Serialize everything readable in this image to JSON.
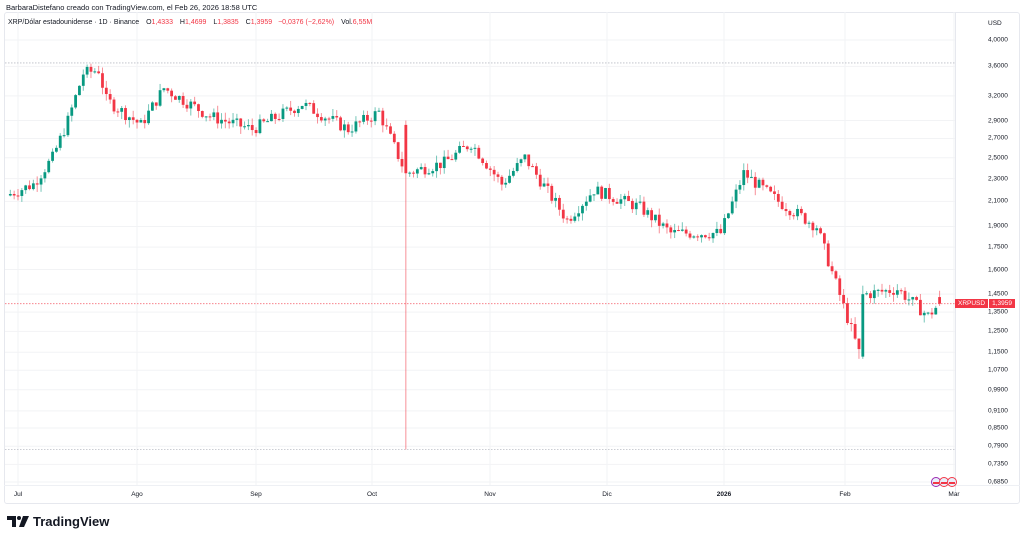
{
  "header": {
    "credit": "BarbaraDistefano creado con TradingView.com, el Feb 26, 2026 18:58 UTC"
  },
  "legend": {
    "symbol": "XRP/Dólar estadounidense · 1D · Binance",
    "open_label": "O",
    "open": "1,4333",
    "high_label": "H",
    "high": "1,4699",
    "low_label": "L",
    "low": "1,3835",
    "close_label": "C",
    "close": "1,3959",
    "change": "−0,0376 (−2,62%)",
    "vol_label": "Vol.",
    "vol": "6,55M"
  },
  "price_axis": {
    "unit": "USD",
    "ticks": [
      "4,0000",
      "3,6000",
      "3,2000",
      "2,9000",
      "2,7000",
      "2,5000",
      "2,3000",
      "2,1000",
      "1,9000",
      "1,7500",
      "1,6000",
      "1,4500",
      "1,3500",
      "1,2500",
      "1,1500",
      "1,0700",
      "0,9900",
      "0,9100",
      "0,8500",
      "0,7900",
      "0,7350",
      "0,6850"
    ]
  },
  "time_axis": {
    "ticks": [
      "Jul",
      "Ago",
      "Sep",
      "Oct",
      "Nov",
      "Dic",
      "2026",
      "Feb",
      "Mar"
    ]
  },
  "price_tag": {
    "symbol": "XRPUSD",
    "value": "1,3959"
  },
  "branding": {
    "logo_text": "TradingView"
  },
  "colors": {
    "up": "#089981",
    "down": "#f23645",
    "grid": "#f2f3f5",
    "text": "#131722"
  },
  "chart_data": {
    "type": "candlestick",
    "title": "XRP/Dólar estadounidense · 1D · Binance",
    "xlabel": "",
    "ylabel": "USD",
    "scale": "log",
    "ylim": [
      0.685,
      4.0
    ],
    "x_ticks": [
      "Jul",
      "Ago",
      "Sep",
      "Oct",
      "Nov",
      "Dic",
      "2026",
      "Feb",
      "Mar"
    ],
    "y_ticks": [
      4.0,
      3.6,
      3.2,
      2.9,
      2.7,
      2.5,
      2.3,
      2.1,
      1.9,
      1.75,
      1.6,
      1.45,
      1.35,
      1.25,
      1.15,
      1.07,
      0.99,
      0.91,
      0.85,
      0.79,
      0.735,
      0.685
    ],
    "horizontal_lines": [
      {
        "value": 3.65,
        "style": "dotted"
      },
      {
        "value": 0.78,
        "style": "dotted"
      },
      {
        "value": 1.3959,
        "style": "dotted",
        "color": "#f23645"
      }
    ],
    "last": {
      "open": 1.4333,
      "high": 1.4699,
      "low": 1.3835,
      "close": 1.3959,
      "change": -0.0376,
      "change_pct": -2.62,
      "volume": "6.55M"
    },
    "series_close_approx": [
      {
        "date": "2025-06-28",
        "close": 2.15
      },
      {
        "date": "2025-07-05",
        "close": 2.25
      },
      {
        "date": "2025-07-10",
        "close": 2.5
      },
      {
        "date": "2025-07-14",
        "close": 2.9
      },
      {
        "date": "2025-07-18",
        "close": 3.5
      },
      {
        "date": "2025-07-22",
        "close": 3.55
      },
      {
        "date": "2025-07-24",
        "close": 3.15
      },
      {
        "date": "2025-08-02",
        "close": 2.85
      },
      {
        "date": "2025-08-08",
        "close": 3.3
      },
      {
        "date": "2025-08-20",
        "close": 2.95
      },
      {
        "date": "2025-08-31",
        "close": 2.8
      },
      {
        "date": "2025-09-13",
        "close": 3.1
      },
      {
        "date": "2025-09-25",
        "close": 2.8
      },
      {
        "date": "2025-10-03",
        "close": 3.0
      },
      {
        "date": "2025-10-10",
        "close": 2.35
      },
      {
        "date": "2025-10-20",
        "close": 2.45
      },
      {
        "date": "2025-10-27",
        "close": 2.65
      },
      {
        "date": "2025-11-04",
        "close": 2.25
      },
      {
        "date": "2025-11-10",
        "close": 2.5
      },
      {
        "date": "2025-11-21",
        "close": 1.95
      },
      {
        "date": "2025-11-28",
        "close": 2.2
      },
      {
        "date": "2025-12-10",
        "close": 2.05
      },
      {
        "date": "2025-12-18",
        "close": 1.85
      },
      {
        "date": "2025-12-31",
        "close": 1.85
      },
      {
        "date": "2026-01-06",
        "close": 2.35
      },
      {
        "date": "2026-01-15",
        "close": 2.1
      },
      {
        "date": "2026-01-25",
        "close": 1.9
      },
      {
        "date": "2026-02-05",
        "close": 1.15
      },
      {
        "date": "2026-02-07",
        "close": 1.45
      },
      {
        "date": "2026-02-15",
        "close": 1.48
      },
      {
        "date": "2026-02-23",
        "close": 1.33
      },
      {
        "date": "2026-02-26",
        "close": 1.3959
      }
    ]
  }
}
